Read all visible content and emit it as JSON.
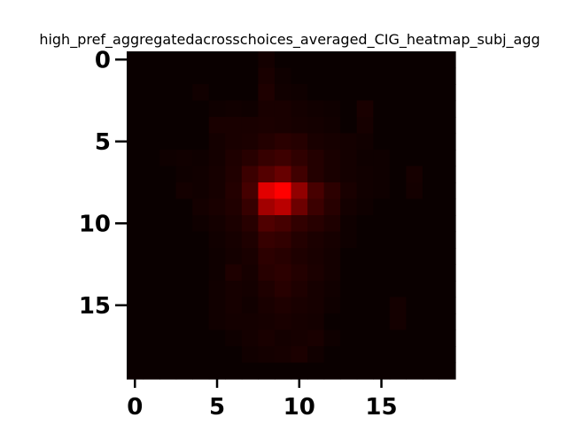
{
  "chart_data": {
    "type": "heatmap",
    "title": "high_pref_aggregatedacrosschoices_averaged_CIG_heatmap_subj_agg",
    "xlabel": "",
    "ylabel": "",
    "rows": 20,
    "cols": 20,
    "xlim": [
      -0.5,
      19.5
    ],
    "ylim": [
      19.5,
      -0.5
    ],
    "x_ticks": [
      0,
      5,
      10,
      15
    ],
    "y_ticks": [
      0,
      5,
      10,
      15
    ],
    "x_tick_labels": [
      "0",
      "5",
      "10",
      "15"
    ],
    "y_tick_labels": [
      "0",
      "5",
      "10",
      "15"
    ],
    "colormap": "hot",
    "colormap_stops": [
      "#0a0000",
      "#ff0000"
    ],
    "grid": false,
    "legend": "none",
    "values": [
      [
        0.0,
        0.0,
        0.0,
        0.0,
        0.0,
        0.0,
        0.0,
        0.0,
        0.04,
        0.0,
        0.0,
        0.0,
        0.0,
        0.0,
        0.0,
        0.0,
        0.0,
        0.0,
        0.0,
        0.0
      ],
      [
        0.0,
        0.0,
        0.0,
        0.0,
        0.0,
        0.0,
        0.0,
        0.0,
        0.06,
        0.02,
        0.0,
        0.0,
        0.0,
        0.0,
        0.0,
        0.0,
        0.0,
        0.0,
        0.0,
        0.0
      ],
      [
        0.0,
        0.0,
        0.0,
        0.0,
        0.03,
        0.0,
        0.0,
        0.0,
        0.08,
        0.03,
        0.02,
        0.0,
        0.0,
        0.0,
        0.0,
        0.0,
        0.0,
        0.0,
        0.0,
        0.0
      ],
      [
        0.0,
        0.0,
        0.0,
        0.0,
        0.0,
        0.02,
        0.03,
        0.02,
        0.06,
        0.06,
        0.04,
        0.03,
        0.02,
        0.0,
        0.06,
        0.0,
        0.0,
        0.0,
        0.0,
        0.0
      ],
      [
        0.0,
        0.0,
        0.0,
        0.0,
        0.0,
        0.06,
        0.06,
        0.06,
        0.07,
        0.06,
        0.05,
        0.04,
        0.03,
        0.0,
        0.05,
        0.0,
        0.0,
        0.0,
        0.0,
        0.0
      ],
      [
        0.0,
        0.0,
        0.0,
        0.0,
        0.0,
        0.04,
        0.06,
        0.07,
        0.1,
        0.13,
        0.11,
        0.06,
        0.05,
        0.04,
        0.03,
        0.0,
        0.0,
        0.0,
        0.0,
        0.0
      ],
      [
        0.0,
        0.0,
        0.02,
        0.03,
        0.02,
        0.04,
        0.08,
        0.12,
        0.18,
        0.21,
        0.15,
        0.1,
        0.06,
        0.04,
        0.02,
        0.02,
        0.0,
        0.0,
        0.0,
        0.0
      ],
      [
        0.0,
        0.0,
        0.0,
        0.02,
        0.03,
        0.05,
        0.09,
        0.2,
        0.3,
        0.38,
        0.22,
        0.1,
        0.06,
        0.04,
        0.03,
        0.02,
        0.0,
        0.05,
        0.0,
        0.0
      ],
      [
        0.0,
        0.0,
        0.0,
        0.04,
        0.03,
        0.05,
        0.1,
        0.24,
        0.88,
        1.0,
        0.55,
        0.25,
        0.14,
        0.06,
        0.03,
        0.02,
        0.0,
        0.04,
        0.0,
        0.0
      ],
      [
        0.0,
        0.0,
        0.0,
        0.0,
        0.04,
        0.06,
        0.09,
        0.18,
        0.62,
        0.72,
        0.4,
        0.2,
        0.12,
        0.04,
        0.02,
        0.0,
        0.0,
        0.0,
        0.0,
        0.0
      ],
      [
        0.0,
        0.0,
        0.0,
        0.0,
        0.02,
        0.04,
        0.07,
        0.12,
        0.28,
        0.24,
        0.16,
        0.12,
        0.08,
        0.02,
        0.0,
        0.0,
        0.0,
        0.0,
        0.0,
        0.0
      ],
      [
        0.0,
        0.0,
        0.0,
        0.0,
        0.0,
        0.03,
        0.05,
        0.08,
        0.18,
        0.16,
        0.1,
        0.07,
        0.05,
        0.02,
        0.0,
        0.0,
        0.0,
        0.0,
        0.0,
        0.0
      ],
      [
        0.0,
        0.0,
        0.0,
        0.0,
        0.0,
        0.02,
        0.04,
        0.06,
        0.14,
        0.12,
        0.08,
        0.06,
        0.04,
        0.0,
        0.0,
        0.0,
        0.0,
        0.0,
        0.0,
        0.0
      ],
      [
        0.0,
        0.0,
        0.0,
        0.0,
        0.0,
        0.02,
        0.08,
        0.05,
        0.12,
        0.14,
        0.1,
        0.07,
        0.04,
        0.0,
        0.0,
        0.0,
        0.0,
        0.0,
        0.0,
        0.0
      ],
      [
        0.0,
        0.0,
        0.0,
        0.0,
        0.0,
        0.03,
        0.05,
        0.04,
        0.08,
        0.12,
        0.08,
        0.05,
        0.03,
        0.0,
        0.0,
        0.0,
        0.0,
        0.0,
        0.0,
        0.0
      ],
      [
        0.0,
        0.0,
        0.0,
        0.0,
        0.0,
        0.03,
        0.05,
        0.03,
        0.06,
        0.08,
        0.06,
        0.05,
        0.02,
        0.0,
        0.0,
        0.0,
        0.04,
        0.0,
        0.0,
        0.0
      ],
      [
        0.0,
        0.0,
        0.0,
        0.0,
        0.0,
        0.03,
        0.04,
        0.04,
        0.05,
        0.06,
        0.05,
        0.04,
        0.0,
        0.0,
        0.0,
        0.0,
        0.04,
        0.0,
        0.0,
        0.0
      ],
      [
        0.0,
        0.0,
        0.0,
        0.0,
        0.0,
        0.0,
        0.02,
        0.04,
        0.06,
        0.04,
        0.05,
        0.06,
        0.02,
        0.0,
        0.0,
        0.0,
        0.0,
        0.0,
        0.0,
        0.0
      ],
      [
        0.0,
        0.0,
        0.0,
        0.0,
        0.0,
        0.0,
        0.0,
        0.03,
        0.04,
        0.05,
        0.07,
        0.03,
        0.0,
        0.0,
        0.0,
        0.0,
        0.0,
        0.0,
        0.0,
        0.0
      ],
      [
        0.0,
        0.0,
        0.0,
        0.0,
        0.0,
        0.0,
        0.0,
        0.0,
        0.0,
        0.0,
        0.0,
        0.0,
        0.0,
        0.0,
        0.0,
        0.0,
        0.0,
        0.0,
        0.0,
        0.0
      ]
    ]
  }
}
